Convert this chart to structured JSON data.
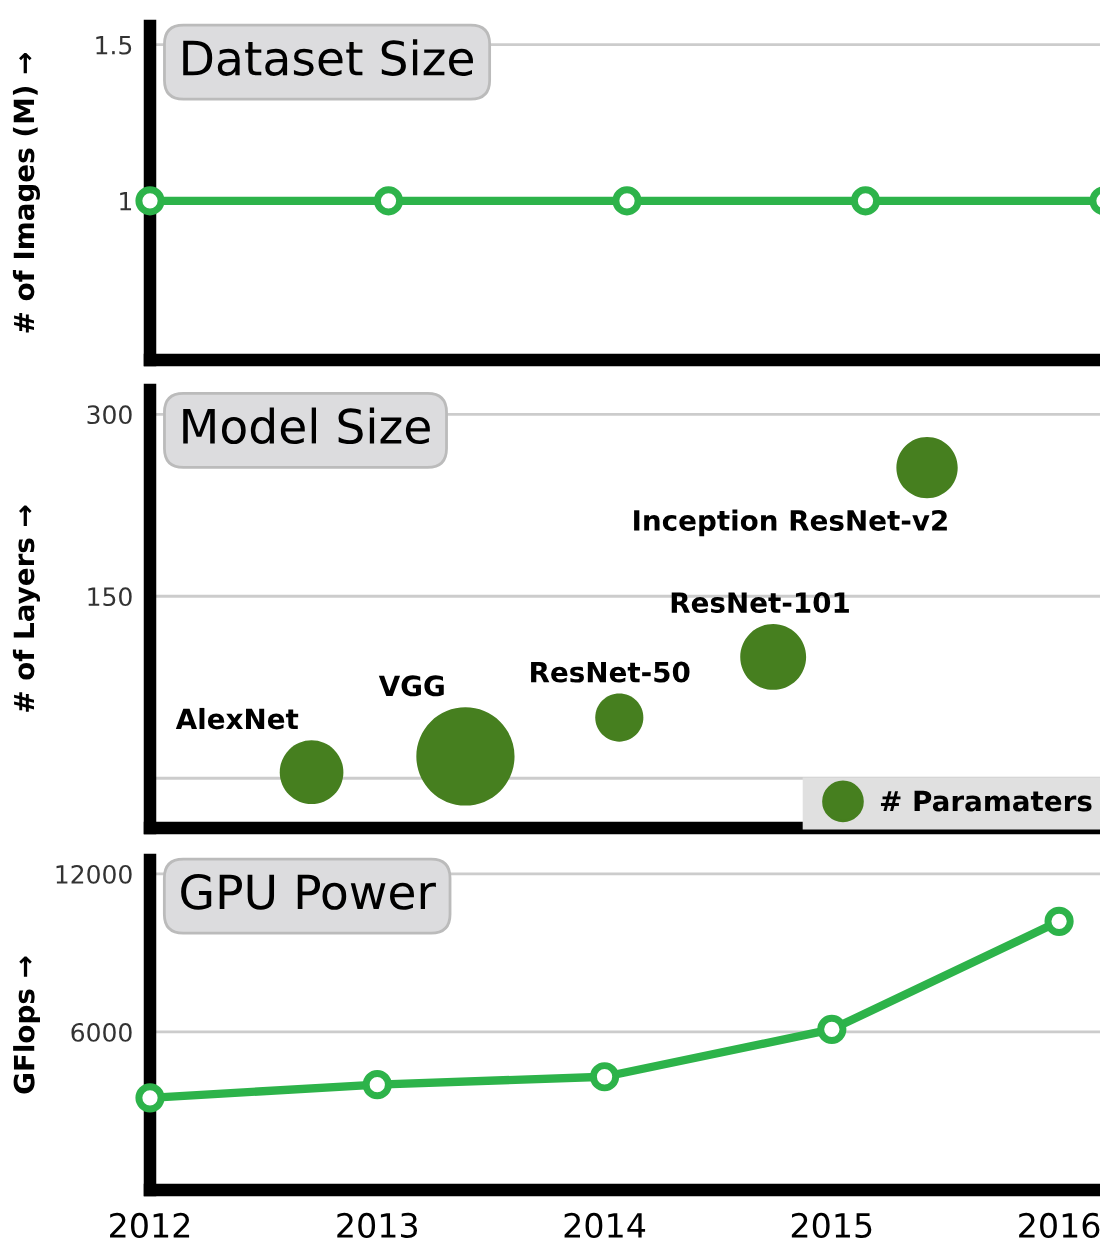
{
  "chart_data": [
    {
      "type": "line",
      "title": "Dataset Size",
      "ylabel": "# of Images (M) →",
      "categories": [
        null,
        null,
        null,
        null,
        null
      ],
      "ylim": [
        0.49,
        1.56
      ],
      "yticks": [
        1,
        1.5
      ],
      "tick_labels": "y",
      "grid": "y",
      "marker": "circle",
      "series": [
        {
          "color": "#2db34a",
          "values": [
            1,
            1,
            1,
            1,
            1
          ]
        }
      ]
    },
    {
      "type": "bubble",
      "title": "Model Size",
      "ylabel": "# of Layers →",
      "categories": [
        null,
        null,
        null,
        null,
        null
      ],
      "ylim": [
        -41,
        320
      ],
      "yticks": [
        {
          "value": 0,
          "label": null
        },
        150,
        300
      ],
      "tick_labels": "y",
      "grid": "y",
      "legend": "bottom right",
      "series": [
        {
          "name": "# Paramaters",
          "color": "#467f1f",
          "values": [
            5,
            18,
            50,
            100,
            256
          ],
          "sizes": [
            0.42,
            1,
            0.24,
            0.45,
            0.39
          ]
        }
      ],
      "annotations": [
        "AlexNet",
        "VGG",
        "ResNet-50",
        "ResNet-101",
        "Inception ResNet-v2"
      ]
    },
    {
      "type": "line",
      "title": "GPU Power",
      "ylabel": "GFlops →",
      "x": [
        2012,
        2013,
        2014,
        2015,
        2016
      ],
      "xlim": [
        2012,
        2016.18
      ],
      "xticks": [
        2012,
        2013,
        2014,
        2015,
        2016
      ],
      "ylim": [
        0,
        12530
      ],
      "yticks": [
        6000,
        12000
      ],
      "grid": "y",
      "marker": "circle",
      "series": [
        {
          "color": "#2db34a",
          "values": [
            3500,
            4000,
            4300,
            6100,
            10200
          ]
        }
      ]
    }
  ]
}
